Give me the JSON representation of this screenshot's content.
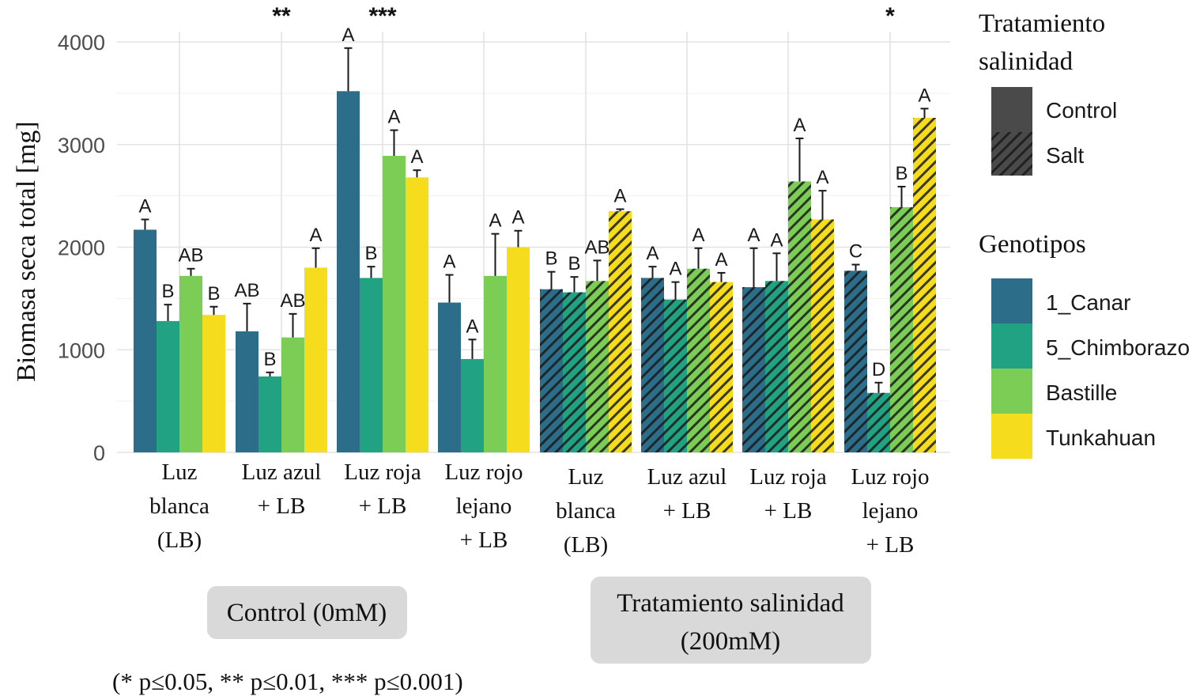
{
  "chart_data": {
    "type": "bar",
    "ylabel": "Biomasa seca total [mg]",
    "ylim": [
      0,
      4000
    ],
    "yticks": [
      0,
      1000,
      2000,
      3000,
      4000
    ],
    "grid": true,
    "legend_position": "right",
    "categories": [
      "Luz\nblanca\n(LB)",
      "Luz azul\n+ LB",
      "Luz roja\n+ LB",
      "Luz rojo\nlejano\n+ LB",
      "Luz\nblanca\n(LB)",
      "Luz azul\n+ LB",
      "Luz roja\n+ LB",
      "Luz rojo\nlejano\n+ LB"
    ],
    "category_treatment": [
      "Control",
      "Control",
      "Control",
      "Control",
      "Salt",
      "Salt",
      "Salt",
      "Salt"
    ],
    "significance": [
      "",
      "**",
      "***",
      "",
      "",
      "",
      "",
      "*"
    ],
    "series": [
      {
        "name": "1_Canar",
        "color": "#2c6e8a",
        "values": [
          2170,
          1180,
          3520,
          1460,
          1590,
          1700,
          1610,
          1770
        ],
        "errors": [
          100,
          270,
          420,
          270,
          170,
          110,
          380,
          60
        ],
        "letters": [
          "A",
          "AB",
          "A",
          "A",
          "B",
          "A",
          "A",
          "C"
        ]
      },
      {
        "name": "5_Chimborazo",
        "color": "#21a283",
        "values": [
          1280,
          740,
          1700,
          910,
          1560,
          1490,
          1670,
          580
        ],
        "errors": [
          160,
          40,
          110,
          190,
          150,
          170,
          270,
          100
        ],
        "letters": [
          "B",
          "B",
          "B",
          "A",
          "B",
          "A",
          "A",
          "D"
        ]
      },
      {
        "name": "Bastille",
        "color": "#7ccd55",
        "values": [
          1720,
          1120,
          2890,
          1720,
          1670,
          1790,
          2640,
          2390
        ],
        "errors": [
          70,
          230,
          250,
          410,
          200,
          200,
          420,
          200
        ],
        "letters": [
          "AB",
          "AB",
          "A",
          "A",
          "AB",
          "A",
          "A",
          "B"
        ]
      },
      {
        "name": "Tunkahuan",
        "color": "#f5dc1c",
        "values": [
          1340,
          1800,
          2680,
          2000,
          2350,
          1660,
          2270,
          3260
        ],
        "errors": [
          80,
          190,
          70,
          160,
          20,
          90,
          280,
          90
        ],
        "letters": [
          "B",
          "A",
          "A",
          "A",
          "A",
          "A",
          "A",
          "A"
        ]
      }
    ],
    "legend_treatment": {
      "title": "Tratamiento\nsalinidad",
      "items": [
        "Control",
        "Salt"
      ]
    },
    "legend_genotype": {
      "title": "Genotipos",
      "items": [
        "1_Canar",
        "5_Chimborazo",
        "Bastille",
        "Tunkahuan"
      ]
    },
    "group_labels": [
      "Control (0mM)",
      "Tratamiento salinidad\n(200mM)"
    ],
    "footnote": "(* p≤0.05, ** p≤0.01, *** p≤0.001)"
  }
}
